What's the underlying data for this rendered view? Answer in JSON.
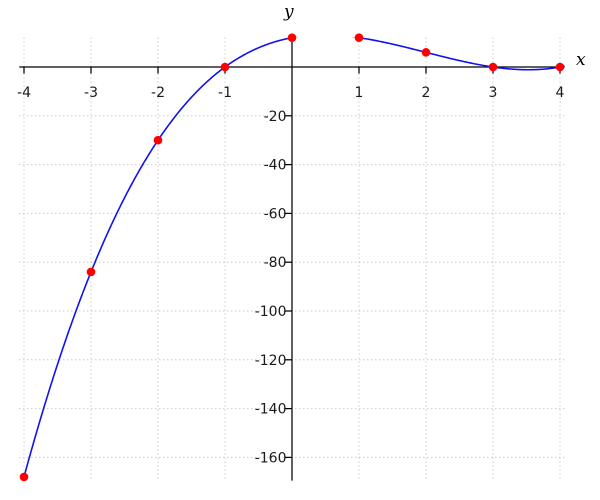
{
  "chart_data": {
    "type": "line",
    "title": "",
    "xlabel": "x",
    "ylabel": "y",
    "xlim": [
      -4.07,
      4.07
    ],
    "ylim": [
      -169.5,
      12.05
    ],
    "x_tick_values": [
      -4,
      -3,
      -2,
      -1,
      1,
      2,
      3,
      4
    ],
    "x_tick_labels": [
      "-4",
      "-3",
      "-2",
      "-1",
      "1",
      "2",
      "3",
      "4"
    ],
    "y_tick_values": [
      -20,
      -40,
      -60,
      -80,
      -100,
      -120,
      -140,
      -160
    ],
    "y_tick_labels": [
      "-20",
      "-40",
      "-60",
      "-80",
      "-100",
      "-120",
      "-140",
      "-160"
    ],
    "grid": {
      "show": true,
      "style": "dotted",
      "color": "#b4b4b4"
    },
    "axis_color": "#000000",
    "tick_text_color": "#1a1a1a",
    "legend": "none",
    "series": [
      {
        "name": "curve",
        "kind": "line",
        "color": "#1212f0",
        "stroke_width": 1.6,
        "poly_coeffs": [
          12,
          5,
          -6,
          1
        ]
      },
      {
        "name": "sample-points",
        "kind": "scatter",
        "color": "#ff0000",
        "marker": "filled-circle",
        "marker_radius_px": 4.3,
        "x": [
          -4,
          -3,
          -2,
          -1,
          0,
          1,
          2,
          3,
          4
        ],
        "y": [
          -168,
          -84,
          -30,
          0,
          12,
          12,
          6,
          0,
          0
        ]
      }
    ]
  }
}
